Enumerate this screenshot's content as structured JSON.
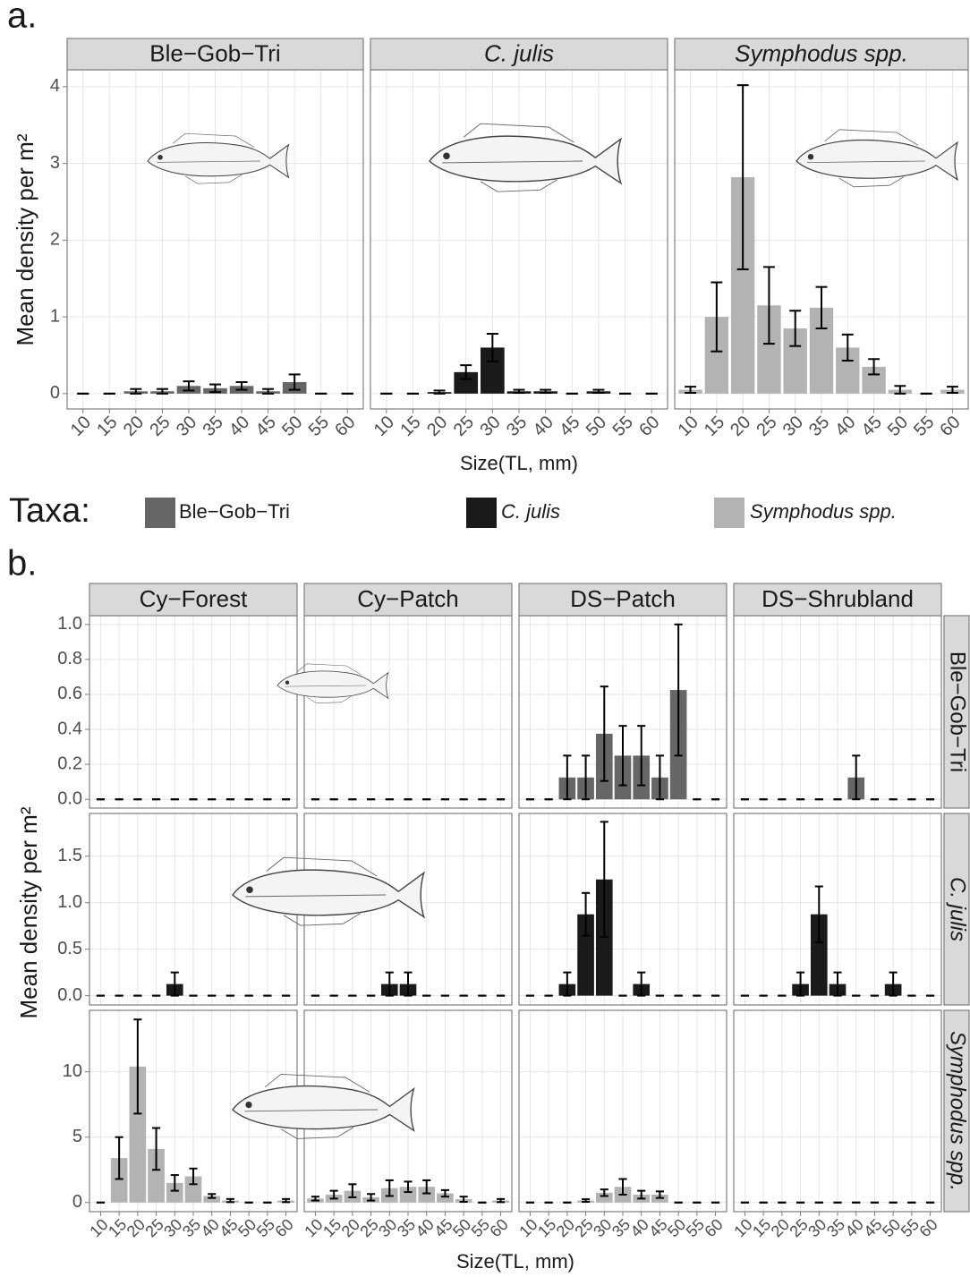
{
  "panel_a": {
    "label": "a.",
    "x_label": "Size(TL, mm)",
    "y_label": "Mean density per m²"
  },
  "legend": {
    "title": "Taxa:",
    "items": [
      {
        "name": "Ble−Gob−Tri",
        "color": "#666666"
      },
      {
        "name": "C. julis",
        "color": "#1a1a1a"
      },
      {
        "name": "Symphodus spp.",
        "color": "#b3b3b3"
      }
    ]
  },
  "panel_b": {
    "label": "b.",
    "x_label": "Size(TL, mm)",
    "y_label": "Mean density per m²",
    "columns": [
      "Cy−Forest",
      "Cy−Patch",
      "DS−Patch",
      "DS−Shrubland"
    ],
    "rows": [
      "Ble−Gob−Tri",
      "C. julis",
      "Symphodus spp."
    ]
  },
  "chart_data": [
    {
      "type": "bar",
      "title": "Ble−Gob−Tri",
      "color": "#666666",
      "categories": [
        10,
        15,
        20,
        25,
        30,
        35,
        40,
        45,
        50,
        55,
        60
      ],
      "values": [
        0,
        0,
        0.03,
        0.03,
        0.1,
        0.07,
        0.1,
        0.03,
        0.15,
        0,
        0
      ],
      "errors": [
        0,
        0,
        0.03,
        0.03,
        0.06,
        0.05,
        0.05,
        0.03,
        0.1,
        0,
        0
      ],
      "ylim": [
        -0.2,
        4.22
      ],
      "yticks": [
        0,
        1,
        2,
        3,
        4
      ],
      "grid": true
    },
    {
      "type": "bar",
      "title": "C. julis",
      "color": "#1a1a1a",
      "categories": [
        10,
        15,
        20,
        25,
        30,
        35,
        40,
        45,
        50,
        55,
        60
      ],
      "values": [
        0,
        0,
        0.02,
        0.28,
        0.6,
        0.03,
        0.03,
        0,
        0.03,
        0,
        0
      ],
      "errors": [
        0,
        0,
        0.02,
        0.09,
        0.18,
        0.02,
        0.02,
        0,
        0.02,
        0,
        0
      ],
      "ylim": [
        -0.2,
        4.22
      ],
      "yticks": [
        0,
        1,
        2,
        3,
        4
      ],
      "grid": true
    },
    {
      "type": "bar",
      "title": "Symphodus spp.",
      "color": "#b3b3b3",
      "categories": [
        10,
        15,
        20,
        25,
        30,
        35,
        40,
        45,
        50,
        55,
        60
      ],
      "values": [
        0.05,
        1.0,
        2.82,
        1.15,
        0.85,
        1.12,
        0.6,
        0.35,
        0.05,
        0,
        0.05
      ],
      "errors": [
        0.04,
        0.45,
        1.2,
        0.5,
        0.23,
        0.27,
        0.17,
        0.1,
        0.05,
        0,
        0.04
      ],
      "ylim": [
        -0.2,
        4.22
      ],
      "yticks": [
        0,
        1,
        2,
        3,
        4
      ],
      "grid": true
    },
    {
      "type": "bar",
      "color": "#666666",
      "categories": [
        10,
        15,
        20,
        25,
        30,
        35,
        40,
        45,
        50,
        55,
        60
      ],
      "values": [
        0,
        0,
        0,
        0,
        0,
        0,
        0,
        0,
        0,
        0,
        0
      ],
      "errors": [
        0,
        0,
        0,
        0,
        0,
        0,
        0,
        0,
        0,
        0,
        0
      ],
      "ylim": [
        -0.05,
        1.05
      ],
      "yticks": [
        {
          "value": 0,
          "label": "0.0"
        },
        0.2,
        0.4,
        0.6,
        0.8,
        {
          "value": 1,
          "label": "1.0"
        }
      ],
      "grid": true
    },
    {
      "type": "bar",
      "color": "#666666",
      "categories": [
        10,
        15,
        20,
        25,
        30,
        35,
        40,
        45,
        50,
        55,
        60
      ],
      "values": [
        0,
        0,
        0,
        0,
        0,
        0,
        0,
        0,
        0,
        0,
        0
      ],
      "errors": [
        0,
        0,
        0,
        0,
        0,
        0,
        0,
        0,
        0,
        0,
        0
      ],
      "ylim": [
        -0.05,
        1.05
      ],
      "yticks": [
        {
          "value": 0,
          "label": "0.0"
        },
        0.2,
        0.4,
        0.6,
        0.8,
        {
          "value": 1,
          "label": "1.0"
        }
      ],
      "grid": true
    },
    {
      "type": "bar",
      "color": "#666666",
      "categories": [
        10,
        15,
        20,
        25,
        30,
        35,
        40,
        45,
        50,
        55,
        60
      ],
      "values": [
        0,
        0,
        0.125,
        0.125,
        0.375,
        0.25,
        0.25,
        0.125,
        0.625,
        0,
        0
      ],
      "errors": [
        0,
        0,
        0.125,
        0.125,
        0.27,
        0.17,
        0.17,
        0.125,
        0.375,
        0,
        0
      ],
      "ylim": [
        -0.05,
        1.05
      ],
      "yticks": [
        {
          "value": 0,
          "label": "0.0"
        },
        0.2,
        0.4,
        0.6,
        0.8,
        {
          "value": 1,
          "label": "1.0"
        }
      ],
      "grid": true
    },
    {
      "type": "bar",
      "color": "#666666",
      "categories": [
        10,
        15,
        20,
        25,
        30,
        35,
        40,
        45,
        50,
        55,
        60
      ],
      "values": [
        0,
        0,
        0,
        0,
        0,
        0,
        0.125,
        0,
        0,
        0,
        0
      ],
      "errors": [
        0,
        0,
        0,
        0,
        0,
        0,
        0.125,
        0,
        0,
        0,
        0
      ],
      "ylim": [
        -0.05,
        1.05
      ],
      "yticks": [
        {
          "value": 0,
          "label": "0.0"
        },
        0.2,
        0.4,
        0.6,
        0.8,
        {
          "value": 1,
          "label": "1.0"
        }
      ],
      "grid": true
    },
    {
      "type": "bar",
      "color": "#1a1a1a",
      "categories": [
        10,
        15,
        20,
        25,
        30,
        35,
        40,
        45,
        50,
        55,
        60
      ],
      "values": [
        0,
        0,
        0,
        0,
        0.125,
        0,
        0,
        0,
        0,
        0,
        0
      ],
      "errors": [
        0,
        0,
        0,
        0,
        0.125,
        0,
        0,
        0,
        0,
        0,
        0
      ],
      "ylim": [
        -0.1,
        1.96
      ],
      "yticks": [
        {
          "value": 0,
          "label": "0.0"
        },
        0.5,
        {
          "value": 1,
          "label": "1.0"
        },
        1.5
      ],
      "grid": true
    },
    {
      "type": "bar",
      "color": "#1a1a1a",
      "categories": [
        10,
        15,
        20,
        25,
        30,
        35,
        40,
        45,
        50,
        55,
        60
      ],
      "values": [
        0,
        0,
        0,
        0,
        0.125,
        0.125,
        0,
        0,
        0,
        0,
        0
      ],
      "errors": [
        0,
        0,
        0,
        0,
        0.125,
        0.125,
        0,
        0,
        0,
        0,
        0
      ],
      "ylim": [
        -0.1,
        1.96
      ],
      "yticks": [
        {
          "value": 0,
          "label": "0.0"
        },
        0.5,
        {
          "value": 1,
          "label": "1.0"
        },
        1.5
      ],
      "grid": true
    },
    {
      "type": "bar",
      "color": "#1a1a1a",
      "categories": [
        10,
        15,
        20,
        25,
        30,
        35,
        40,
        45,
        50,
        55,
        60
      ],
      "values": [
        0,
        0,
        0.125,
        0.875,
        1.25,
        0,
        0.125,
        0,
        0,
        0,
        0
      ],
      "errors": [
        0,
        0,
        0.125,
        0.23,
        0.62,
        0,
        0.125,
        0,
        0,
        0,
        0
      ],
      "ylim": [
        -0.1,
        1.96
      ],
      "yticks": [
        {
          "value": 0,
          "label": "0.0"
        },
        0.5,
        {
          "value": 1,
          "label": "1.0"
        },
        1.5
      ],
      "grid": true
    },
    {
      "type": "bar",
      "color": "#1a1a1a",
      "categories": [
        10,
        15,
        20,
        25,
        30,
        35,
        40,
        45,
        50,
        55,
        60
      ],
      "values": [
        0,
        0,
        0,
        0.125,
        0.875,
        0.125,
        0,
        0,
        0.125,
        0,
        0
      ],
      "errors": [
        0,
        0,
        0,
        0.125,
        0.3,
        0.125,
        0,
        0,
        0.125,
        0,
        0
      ],
      "ylim": [
        -0.1,
        1.96
      ],
      "yticks": [
        {
          "value": 0,
          "label": "0.0"
        },
        0.5,
        {
          "value": 1,
          "label": "1.0"
        },
        1.5
      ],
      "grid": true
    },
    {
      "type": "bar",
      "color": "#b3b3b3",
      "categories": [
        10,
        15,
        20,
        25,
        30,
        35,
        40,
        45,
        50,
        55,
        60
      ],
      "values": [
        0,
        3.4,
        10.4,
        4.1,
        1.5,
        2.0,
        0.5,
        0.15,
        0,
        0,
        0.15
      ],
      "errors": [
        0,
        1.6,
        3.6,
        1.6,
        0.6,
        0.6,
        0.15,
        0.12,
        0,
        0,
        0.12
      ],
      "ylim": [
        -0.7,
        14.7
      ],
      "yticks": [
        0,
        5,
        10
      ],
      "grid": true
    },
    {
      "type": "bar",
      "color": "#b3b3b3",
      "categories": [
        10,
        15,
        20,
        25,
        30,
        35,
        40,
        45,
        50,
        55,
        60
      ],
      "values": [
        0.3,
        0.6,
        0.9,
        0.4,
        1.1,
        1.2,
        1.2,
        0.7,
        0.25,
        0,
        0.15
      ],
      "errors": [
        0.15,
        0.3,
        0.5,
        0.25,
        0.6,
        0.4,
        0.5,
        0.25,
        0.2,
        0,
        0.12
      ],
      "ylim": [
        -0.7,
        14.7
      ],
      "yticks": [
        0,
        5,
        10
      ],
      "grid": true
    },
    {
      "type": "bar",
      "color": "#b3b3b3",
      "categories": [
        10,
        15,
        20,
        25,
        30,
        35,
        40,
        45,
        50,
        55,
        60
      ],
      "values": [
        0,
        0,
        0,
        0.15,
        0.75,
        1.2,
        0.6,
        0.6,
        0,
        0,
        0
      ],
      "errors": [
        0,
        0,
        0,
        0.1,
        0.25,
        0.6,
        0.3,
        0.25,
        0,
        0,
        0
      ],
      "ylim": [
        -0.7,
        14.7
      ],
      "yticks": [
        0,
        5,
        10
      ],
      "grid": true
    },
    {
      "type": "bar",
      "color": "#b3b3b3",
      "categories": [
        10,
        15,
        20,
        25,
        30,
        35,
        40,
        45,
        50,
        55,
        60
      ],
      "values": [
        0,
        0,
        0,
        0,
        0,
        0,
        0,
        0,
        0,
        0,
        0
      ],
      "errors": [
        0,
        0,
        0,
        0,
        0,
        0,
        0,
        0,
        0,
        0,
        0
      ],
      "ylim": [
        -0.7,
        14.7
      ],
      "yticks": [
        0,
        5,
        10
      ],
      "grid": true
    }
  ]
}
